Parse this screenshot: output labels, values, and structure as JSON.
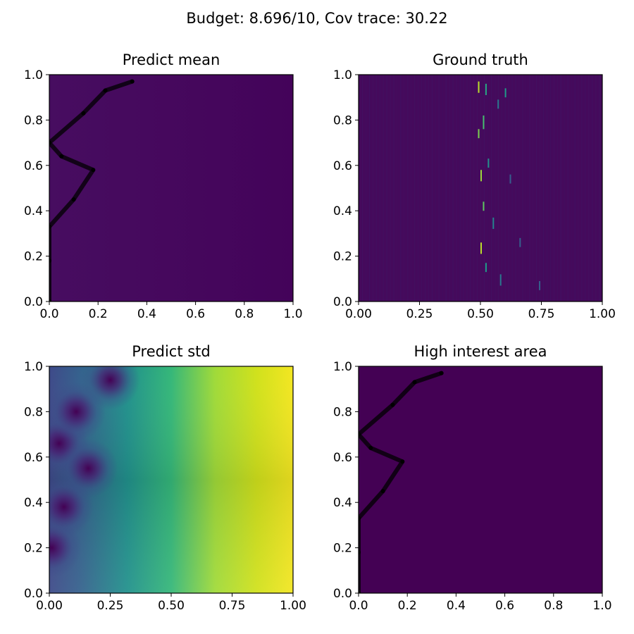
{
  "figure": {
    "suptitle": "Budget: 8.696/10,  Cov trace: 30.22"
  },
  "colors": {
    "viridis_dark": "#440154",
    "mean_background": "#46085c",
    "truth_background": "#450a5c",
    "path": "#000000",
    "axes": "#000000"
  },
  "chart_data": [
    {
      "type": "heatmap",
      "title": "Predict mean",
      "xlim": [
        0,
        1
      ],
      "ylim": [
        0,
        1
      ],
      "xticks": [
        0.0,
        0.2,
        0.4,
        0.6,
        0.8,
        1.0
      ],
      "xticklabels": [
        "0.0",
        "0.2",
        "0.4",
        "0.6",
        "0.8",
        "1.0"
      ],
      "yticks": [
        0.0,
        0.2,
        0.4,
        0.6,
        0.8,
        1.0
      ],
      "yticklabels": [
        "0.0",
        "0.2",
        "0.4",
        "0.6",
        "0.8",
        "1.0"
      ],
      "colormap": "viridis",
      "field": "near-uniform dark purple",
      "path": {
        "x": [
          0.0,
          0.0,
          0.0,
          0.1,
          0.18,
          0.05,
          0.0,
          0.14,
          0.23,
          0.34
        ],
        "y": [
          0.0,
          0.18,
          0.33,
          0.45,
          0.58,
          0.64,
          0.7,
          0.83,
          0.93,
          0.97
        ]
      }
    },
    {
      "type": "heatmap",
      "title": "Ground truth",
      "xlim": [
        0,
        1
      ],
      "ylim": [
        0,
        1
      ],
      "xticks": [
        0.0,
        0.25,
        0.5,
        0.75,
        1.0
      ],
      "xticklabels": [
        "0.00",
        "0.25",
        "0.50",
        "0.75",
        "1.00"
      ],
      "yticks": [
        0.0,
        0.2,
        0.4,
        0.6,
        0.8,
        1.0
      ],
      "yticklabels": [
        "0.0",
        "0.2",
        "0.4",
        "0.6",
        "0.8",
        "1.0"
      ],
      "colormap": "viridis",
      "field": "dark purple with bright thin vertical streaks concentrated near x = 0.5–0.6",
      "streaks": [
        {
          "x": 0.49,
          "y": 0.97,
          "len": 0.05,
          "v": 0.9
        },
        {
          "x": 0.49,
          "y": 0.76,
          "len": 0.04,
          "v": 0.8
        },
        {
          "x": 0.5,
          "y": 0.58,
          "len": 0.05,
          "v": 0.85
        },
        {
          "x": 0.5,
          "y": 0.26,
          "len": 0.05,
          "v": 0.9
        },
        {
          "x": 0.51,
          "y": 0.82,
          "len": 0.06,
          "v": 0.7
        },
        {
          "x": 0.51,
          "y": 0.44,
          "len": 0.04,
          "v": 0.75
        },
        {
          "x": 0.52,
          "y": 0.96,
          "len": 0.05,
          "v": 0.6
        },
        {
          "x": 0.52,
          "y": 0.17,
          "len": 0.04,
          "v": 0.55
        },
        {
          "x": 0.53,
          "y": 0.63,
          "len": 0.04,
          "v": 0.5
        },
        {
          "x": 0.55,
          "y": 0.37,
          "len": 0.05,
          "v": 0.45
        },
        {
          "x": 0.57,
          "y": 0.89,
          "len": 0.04,
          "v": 0.4
        },
        {
          "x": 0.58,
          "y": 0.12,
          "len": 0.05,
          "v": 0.4
        },
        {
          "x": 0.6,
          "y": 0.94,
          "len": 0.04,
          "v": 0.55
        },
        {
          "x": 0.62,
          "y": 0.56,
          "len": 0.04,
          "v": 0.3
        },
        {
          "x": 0.66,
          "y": 0.28,
          "len": 0.04,
          "v": 0.3
        },
        {
          "x": 0.74,
          "y": 0.09,
          "len": 0.04,
          "v": 0.3
        }
      ]
    },
    {
      "type": "heatmap",
      "title": "Predict std",
      "xlim": [
        0,
        1
      ],
      "ylim": [
        0,
        1
      ],
      "xticks": [
        0.0,
        0.25,
        0.5,
        0.75,
        1.0
      ],
      "xticklabels": [
        "0.00",
        "0.25",
        "0.50",
        "0.75",
        "1.00"
      ],
      "yticks": [
        0.0,
        0.2,
        0.4,
        0.6,
        0.8,
        1.0
      ],
      "yticklabels": [
        "0.0",
        "0.2",
        "0.4",
        "0.6",
        "0.8",
        "1.0"
      ],
      "colormap": "viridis",
      "field": "std rises from left (low) to right (high); low-value dips at sampled points",
      "low_points": {
        "x": [
          0.01,
          0.06,
          0.04,
          0.16,
          0.11,
          0.25
        ],
        "y": [
          0.2,
          0.38,
          0.66,
          0.55,
          0.8,
          0.94
        ]
      }
    },
    {
      "type": "heatmap",
      "title": "High interest area",
      "xlim": [
        0,
        1
      ],
      "ylim": [
        0,
        1
      ],
      "xticks": [
        0.0,
        0.2,
        0.4,
        0.6,
        0.8,
        1.0
      ],
      "xticklabels": [
        "0.0",
        "0.2",
        "0.4",
        "0.6",
        "0.8",
        "1.0"
      ],
      "yticks": [
        0.0,
        0.2,
        0.4,
        0.6,
        0.8,
        1.0
      ],
      "yticklabels": [
        "0.0",
        "0.2",
        "0.4",
        "0.6",
        "0.8",
        "1.0"
      ],
      "colormap": "viridis",
      "field": "uniform dark purple",
      "path": {
        "x": [
          0.0,
          0.0,
          0.0,
          0.1,
          0.18,
          0.05,
          0.0,
          0.14,
          0.23,
          0.34
        ],
        "y": [
          0.0,
          0.18,
          0.33,
          0.45,
          0.58,
          0.64,
          0.7,
          0.83,
          0.93,
          0.97
        ]
      }
    }
  ]
}
